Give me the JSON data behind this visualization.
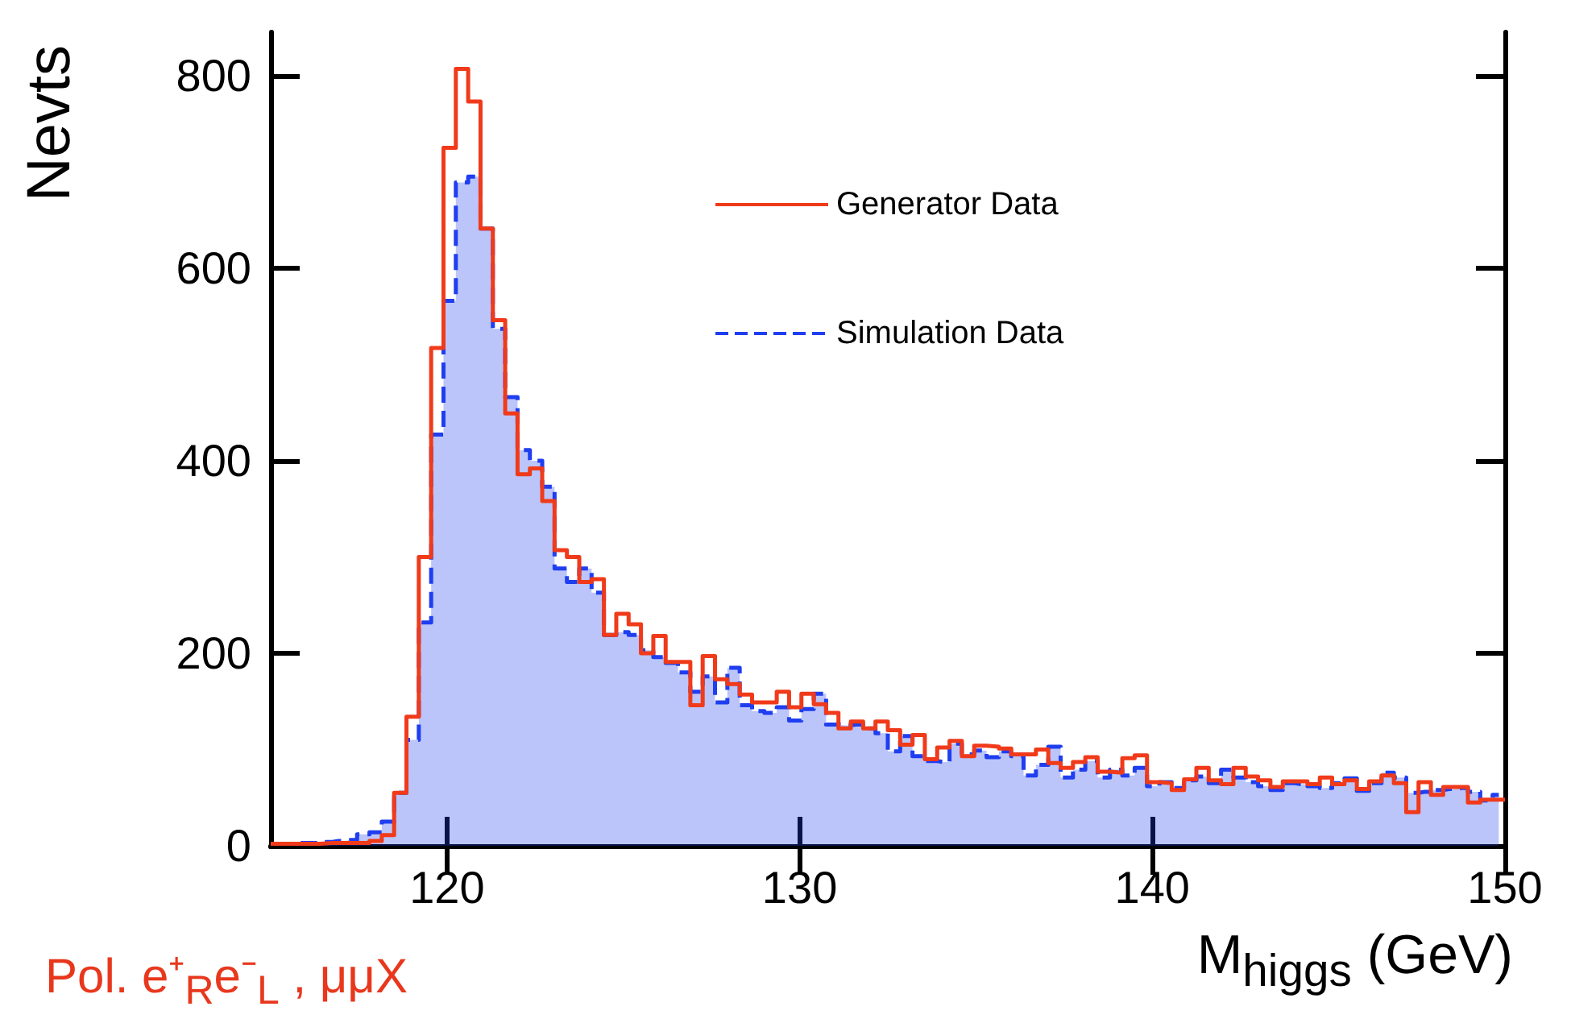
{
  "chart_data": {
    "type": "histogram",
    "xlabel": "M$_{higgs}$ (GeV)",
    "ylabel": "Nevts",
    "bins": [
      115,
      115.35,
      115.7,
      116.05,
      116.4,
      116.75,
      117.1,
      117.45,
      117.8,
      118.15,
      118.5,
      118.85,
      119.2,
      119.55,
      119.9,
      120.25,
      120.6,
      120.95,
      121.3,
      121.65,
      122,
      122.35,
      122.7,
      123.05,
      123.4,
      123.75,
      124.1,
      124.45,
      124.8,
      125.15,
      125.5,
      125.85,
      126.2,
      126.55,
      126.9,
      127.25,
      127.6,
      127.95,
      128.3,
      128.65,
      129,
      129.35,
      129.7,
      130.05,
      130.4,
      130.75,
      131.1,
      131.45,
      131.8,
      132.15,
      132.5,
      132.85,
      133.2,
      133.55,
      133.9,
      134.25,
      134.6,
      134.95,
      135.3,
      135.65,
      136,
      136.35,
      136.7,
      137.05,
      137.4,
      137.75,
      138.1,
      138.45,
      138.8,
      139.15,
      139.5,
      139.85,
      140.2,
      140.55,
      140.9,
      141.25,
      141.6,
      141.95,
      142.3,
      142.65,
      143,
      143.35,
      143.7,
      144.05,
      144.4,
      144.75,
      145.1,
      145.45,
      145.8,
      146.15,
      146.5,
      146.85,
      147.2,
      147.55,
      147.9,
      148.25,
      148.6,
      148.95,
      149.3,
      149.65,
      150
    ],
    "series": [
      {
        "name": "Generator Data",
        "color": "#f03a1a",
        "line_style": "solid",
        "values": [
          2,
          2,
          2,
          2,
          3,
          3,
          3,
          3,
          5,
          11,
          55,
          134,
          300,
          517,
          725,
          807,
          773,
          641,
          546,
          449,
          386,
          392,
          358,
          307,
          300,
          274,
          277,
          219,
          241,
          230,
          200,
          218,
          191,
          191,
          146,
          197,
          173,
          168,
          157,
          149,
          149,
          160,
          144,
          158,
          147,
          138,
          122,
          129,
          122,
          129,
          120,
          105,
          115,
          90,
          102,
          109,
          93,
          104,
          103,
          101,
          95,
          95,
          100,
          86,
          81,
          87,
          92,
          77,
          76,
          91,
          94,
          66,
          65,
          58,
          69,
          81,
          68,
          64,
          81,
          72,
          68,
          61,
          67,
          67,
          64,
          71,
          64,
          68,
          59,
          67,
          73,
          65,
          35,
          66,
          53,
          61,
          61,
          45,
          48,
          48
        ]
      },
      {
        "name": "Simulation Data",
        "type": "area",
        "color": "#1f3ef0",
        "line_style": "dashed",
        "x": [
          115.175,
          115.525,
          115.875,
          116.225,
          116.575,
          116.925,
          117.275,
          117.625,
          117.975,
          118.325,
          118.675,
          119.025,
          119.375,
          119.725,
          120.075,
          120.425,
          120.775,
          121.125,
          121.475,
          121.825,
          122.175,
          122.525,
          122.875,
          123.225,
          123.575,
          123.925,
          124.275,
          124.625,
          124.975,
          125.325,
          125.675,
          126.025,
          126.375,
          126.725,
          127.075,
          127.425,
          127.775,
          128.125,
          128.475,
          128.825,
          129.175,
          129.525,
          129.875,
          130.225,
          130.575,
          130.925,
          131.275,
          131.625,
          131.975,
          132.325,
          132.675,
          133.025,
          133.375,
          133.725,
          134.075,
          134.425,
          134.775,
          135.125,
          135.475,
          135.825,
          136.175,
          136.525,
          136.875,
          137.225,
          137.575,
          137.925,
          138.275,
          138.625,
          138.975,
          139.325,
          139.675,
          140.025,
          140.375,
          140.725,
          141.075,
          141.425,
          141.775,
          142.125,
          142.475,
          142.825,
          143.175,
          143.525,
          143.875,
          144.225,
          144.575,
          144.925,
          145.275,
          145.625,
          145.975,
          146.325,
          146.675,
          147.025,
          147.375,
          147.725,
          148.075,
          148.425,
          148.775,
          149.125,
          149.475,
          149.825
        ],
        "values": [
          2,
          2,
          3,
          3,
          4,
          5,
          6,
          12,
          14,
          25,
          55,
          110,
          232,
          427,
          566,
          689,
          695,
          641,
          537,
          466,
          411,
          400,
          373,
          288,
          274,
          288,
          263,
          219,
          222,
          219,
          203,
          196,
          190,
          180,
          160,
          176,
          149,
          185,
          146,
          140,
          138,
          144,
          130,
          142,
          158,
          126,
          125,
          126,
          122,
          117,
          98,
          114,
          93,
          88,
          87,
          106,
          95,
          99,
          92,
          98,
          93,
          73,
          84,
          103,
          71,
          79,
          88,
          71,
          79,
          73,
          81,
          62,
          66,
          60,
          68,
          72,
          65,
          79,
          71,
          66,
          62,
          58,
          65,
          64,
          62,
          60,
          65,
          70,
          57,
          65,
          76,
          71,
          55,
          56,
          58,
          59,
          60,
          56,
          47,
          53
        ]
      }
    ],
    "xlim": [
      115,
      150
    ],
    "xticks": [
      120,
      130,
      140,
      150
    ],
    "ylim": [
      0,
      845
    ],
    "yticks": [
      0,
      200,
      400,
      600,
      800
    ],
    "legend": "top right",
    "annotations": [
      "Pol. e⁺$_{R}$e⁻$_{L}$ , μμX"
    ]
  }
}
